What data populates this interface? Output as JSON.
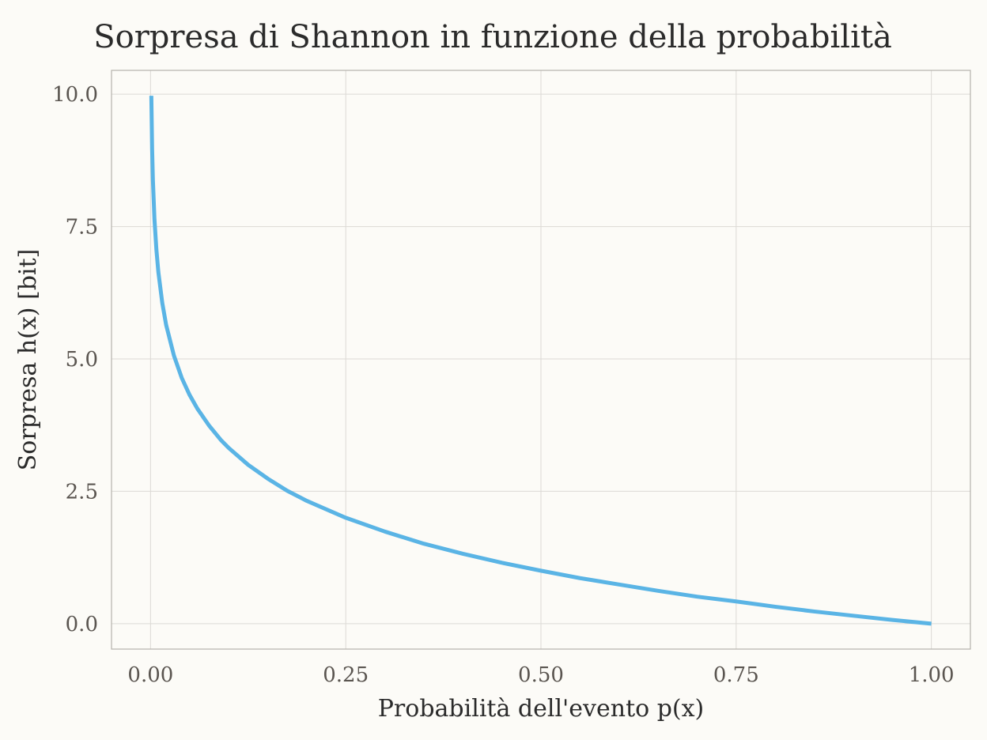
{
  "chart_data": {
    "type": "line",
    "title": "Sorpresa di Shannon in funzione della probabilità",
    "xlabel": "Probabilità dell'evento p(x)",
    "ylabel": "Sorpresa h(x) [bit]",
    "xlim": [
      -0.05,
      1.05
    ],
    "ylim": [
      -0.48,
      10.45
    ],
    "xticks": [
      0.0,
      0.25,
      0.5,
      0.75,
      1.0
    ],
    "xtick_labels": [
      "0.00",
      "0.25",
      "0.50",
      "0.75",
      "1.00"
    ],
    "yticks": [
      0.0,
      2.5,
      5.0,
      7.5,
      10.0
    ],
    "ytick_labels": [
      "0.0",
      "2.5",
      "5.0",
      "7.5",
      "10.0"
    ],
    "grid": true,
    "series": [
      {
        "color": "#5ab4e5",
        "x": [
          0.001,
          0.002,
          0.003,
          0.005,
          0.0075,
          0.01,
          0.015,
          0.02,
          0.03,
          0.04,
          0.05,
          0.06,
          0.075,
          0.09,
          0.1,
          0.125,
          0.15,
          0.175,
          0.2,
          0.25,
          0.3,
          0.35,
          0.4,
          0.45,
          0.5,
          0.55,
          0.6,
          0.65,
          0.7,
          0.75,
          0.8,
          0.85,
          0.9,
          0.95,
          1.0
        ],
        "y": [
          9.97,
          8.97,
          8.38,
          7.64,
          7.06,
          6.64,
          6.06,
          5.64,
          5.06,
          4.64,
          4.32,
          4.06,
          3.74,
          3.47,
          3.32,
          3.0,
          2.74,
          2.51,
          2.32,
          2.0,
          1.74,
          1.51,
          1.32,
          1.15,
          1.0,
          0.86,
          0.74,
          0.62,
          0.51,
          0.42,
          0.32,
          0.23,
          0.15,
          0.07,
          0.0
        ]
      }
    ]
  }
}
